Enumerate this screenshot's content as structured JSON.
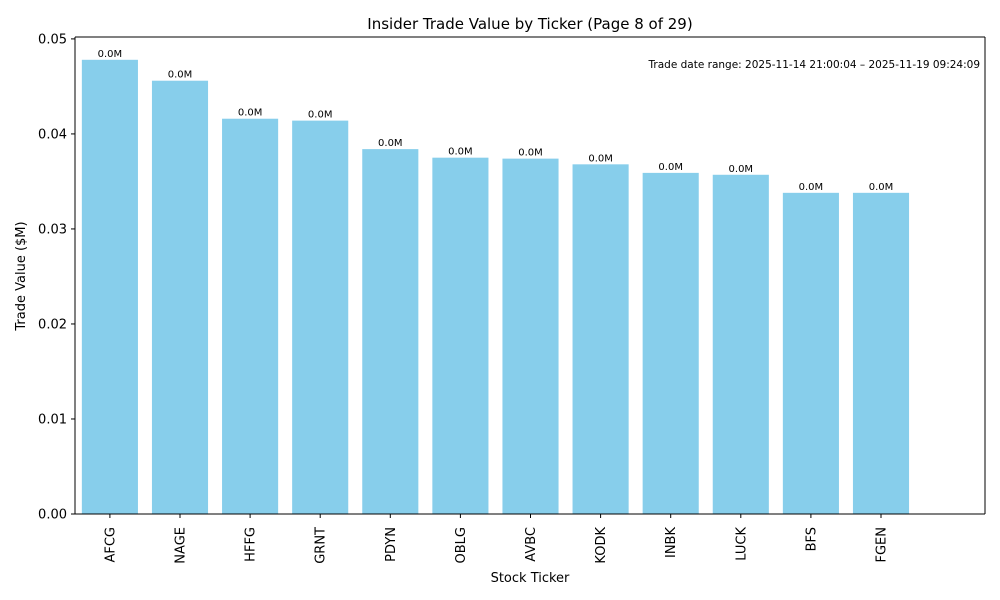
{
  "chart_data": {
    "type": "bar",
    "title": "Insider Trade Value by Ticker (Page 8 of 29)",
    "xlabel": "Stock Ticker",
    "ylabel": "Trade Value ($M)",
    "categories": [
      "AFCG",
      "NAGE",
      "HFFG",
      "GRNT",
      "PDYN",
      "OBLG",
      "AVBC",
      "KODK",
      "INBK",
      "LUCK",
      "BFS",
      "FGEN"
    ],
    "values": [
      0.0478,
      0.0456,
      0.0416,
      0.0414,
      0.0384,
      0.0375,
      0.0374,
      0.0368,
      0.0359,
      0.0357,
      0.0338,
      0.0338
    ],
    "data_labels": [
      "0.0M",
      "0.0M",
      "0.0M",
      "0.0M",
      "0.0M",
      "0.0M",
      "0.0M",
      "0.0M",
      "0.0M",
      "0.0M",
      "0.0M",
      "0.0M"
    ],
    "ylim": [
      0,
      0.0502
    ],
    "yticks": [
      0.0,
      0.01,
      0.02,
      0.03,
      0.04,
      0.05
    ],
    "ytick_labels": [
      "0.00",
      "0.01",
      "0.02",
      "0.03",
      "0.04",
      "0.05"
    ],
    "grid": false,
    "annotation": "Trade date range: 2025-11-14 21:00:04 – 2025-11-19 09:24:09",
    "annotation_placement": "top-right",
    "colors": {
      "bar": "#87ceeb",
      "axis": "#000000",
      "text": "#000000"
    }
  }
}
